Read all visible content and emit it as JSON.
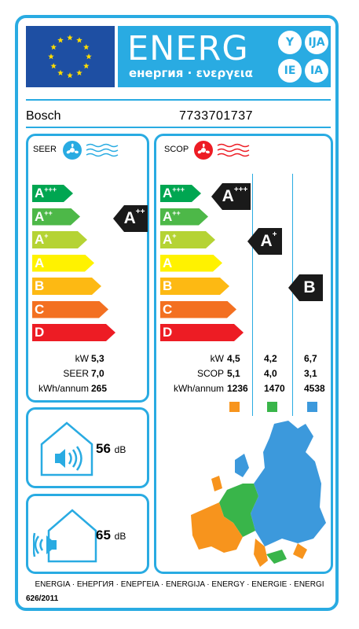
{
  "header": {
    "title": "ENERG",
    "subtitle": "енергия · ενεργεια",
    "languages": [
      "Y",
      "IJA",
      "IE",
      "IA"
    ]
  },
  "supplier": "Bosch",
  "model": "7733701737",
  "seer_panel": {
    "title": "SEER",
    "classes": [
      "A+++",
      "A++",
      "A+",
      "A",
      "B",
      "C",
      "D"
    ],
    "class_colors": [
      "#00a651",
      "#4db848",
      "#b5d334",
      "#fff200",
      "#fdb913",
      "#f37021",
      "#ed1c24"
    ],
    "rating": "A++",
    "rows": [
      {
        "label": "kW",
        "value": "5,3"
      },
      {
        "label": "SEER",
        "value": "7,0"
      },
      {
        "label": "kWh/annum",
        "value": "265"
      }
    ]
  },
  "scop_panel": {
    "title": "SCOP",
    "classes": [
      "A+++",
      "A++",
      "A+",
      "A",
      "B",
      "C",
      "D"
    ],
    "ratings": [
      "A+++",
      "A+",
      "B"
    ],
    "rows": [
      {
        "label": "kW",
        "values": [
          "4,5",
          "4,2",
          "6,7"
        ]
      },
      {
        "label": "SCOP",
        "values": [
          "5,1",
          "4,0",
          "3,1"
        ]
      },
      {
        "label": "kWh/annum",
        "values": [
          "1236",
          "1470",
          "4538"
        ]
      }
    ],
    "climate_colors": [
      "#f7941d",
      "#39b54a",
      "#3c99dc"
    ]
  },
  "noise_indoor": {
    "value": "56",
    "unit": "dB"
  },
  "noise_outdoor": {
    "value": "65",
    "unit": "dB"
  },
  "footer": {
    "languages": "ENERGIA · ЕНЕРГИЯ · ΕΝΕΡΓΕΙΑ · ENERGIJA · ENERGY · ENERGIE · ENERGI",
    "regulation": "626/2011"
  }
}
